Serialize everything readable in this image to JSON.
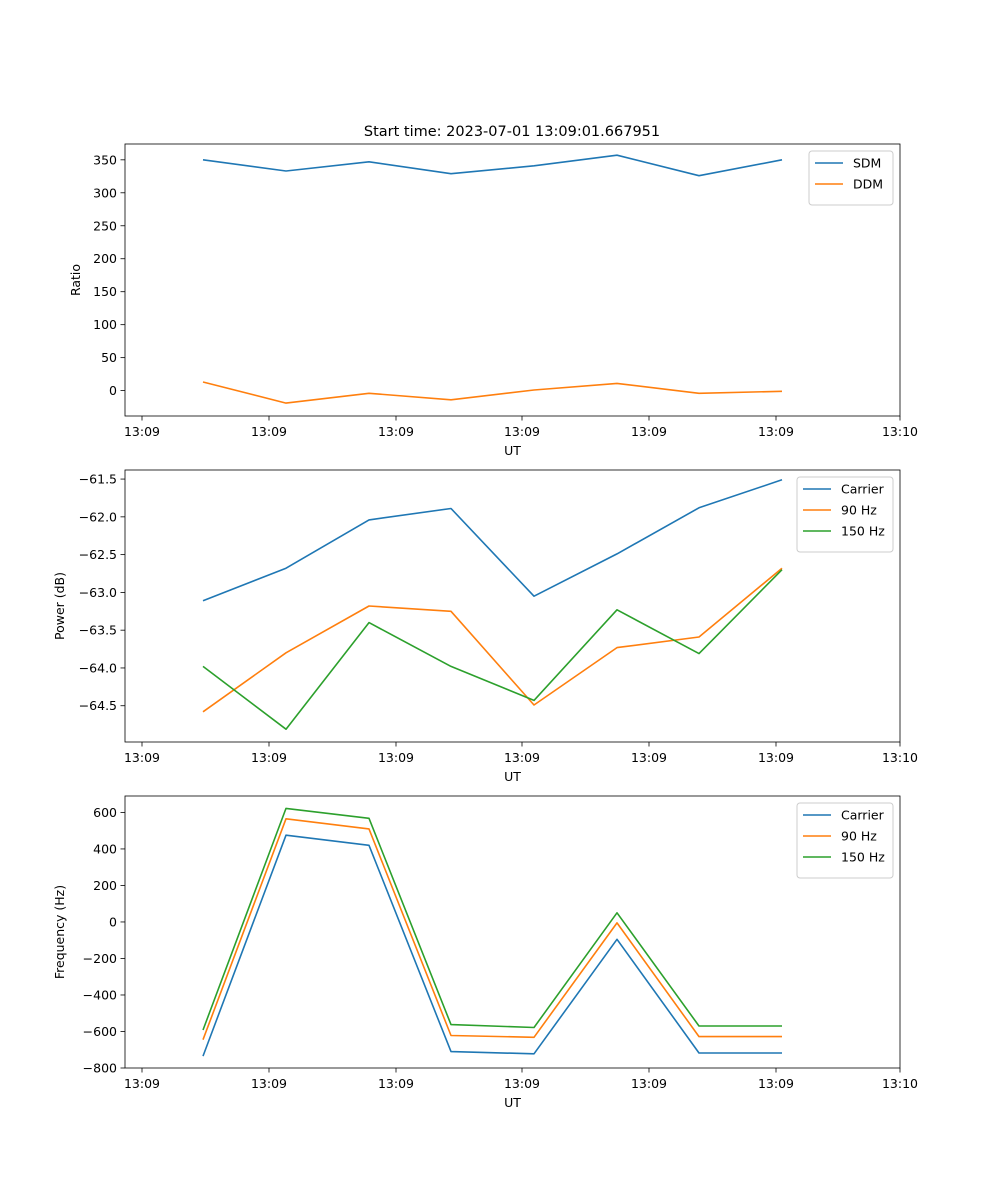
{
  "figure_title": "Start time: 2023-07-01 13:09:01.667951",
  "colors": {
    "blue": "#1f77b4",
    "orange": "#ff7f0e",
    "green": "#2ca02c"
  },
  "chart_data": [
    {
      "type": "line",
      "title": "Start time: 2023-07-01 13:09:01.667951",
      "xlabel": "UT",
      "ylabel": "Ratio",
      "x_tick_labels": [
        "13:09",
        "13:09",
        "13:09",
        "13:09",
        "13:09",
        "13:09",
        "13:10"
      ],
      "y_ticks": [
        0,
        50,
        100,
        150,
        200,
        250,
        300,
        350
      ],
      "y_tick_labels": [
        "0",
        "50",
        "100",
        "150",
        "200",
        "250",
        "300",
        "350"
      ],
      "ylim": [
        -38.5,
        374
      ],
      "legend_position": "upper right",
      "series": [
        {
          "name": "SDM",
          "color": "#1f77b4",
          "values": [
            350,
            333,
            347,
            329,
            341,
            357,
            326,
            350
          ]
        },
        {
          "name": "DDM",
          "color": "#ff7f0e",
          "values": [
            13,
            -19,
            -4,
            -14,
            1,
            11,
            -4,
            -1
          ]
        }
      ]
    },
    {
      "type": "line",
      "title": "",
      "xlabel": "UT",
      "ylabel": "Power (dB)",
      "x_tick_labels": [
        "13:09",
        "13:09",
        "13:09",
        "13:09",
        "13:09",
        "13:09",
        "13:10"
      ],
      "y_ticks": [
        -64.5,
        -64.0,
        -63.5,
        -63.0,
        -62.5,
        -62.0,
        -61.5
      ],
      "y_tick_labels": [
        "−64.5",
        "−64.0",
        "−63.5",
        "−63.0",
        "−62.5",
        "−62.0",
        "−61.5"
      ],
      "ylim": [
        -64.98,
        -61.38
      ],
      "legend_position": "upper right",
      "series": [
        {
          "name": "Carrier",
          "color": "#1f77b4",
          "values": [
            -63.11,
            -62.68,
            -62.04,
            -61.89,
            -63.05,
            -62.49,
            -61.88,
            -61.51
          ]
        },
        {
          "name": "90 Hz",
          "color": "#ff7f0e",
          "values": [
            -64.58,
            -63.8,
            -63.18,
            -63.25,
            -64.49,
            -63.73,
            -63.59,
            -62.68
          ]
        },
        {
          "name": "150 Hz",
          "color": "#2ca02c",
          "values": [
            -63.98,
            -64.81,
            -63.4,
            -63.98,
            -64.43,
            -63.23,
            -63.81,
            -62.7
          ]
        }
      ]
    },
    {
      "type": "line",
      "title": "",
      "xlabel": "UT",
      "ylabel": "Frequency (Hz)",
      "x_tick_labels": [
        "13:09",
        "13:09",
        "13:09",
        "13:09",
        "13:09",
        "13:09",
        "13:10"
      ],
      "y_ticks": [
        -800,
        -600,
        -400,
        -200,
        0,
        200,
        400,
        600
      ],
      "y_tick_labels": [
        "−800",
        "−600",
        "−400",
        "−200",
        "0",
        "200",
        "400",
        "600"
      ],
      "ylim": [
        -800,
        690
      ],
      "legend_position": "upper right",
      "series": [
        {
          "name": "Carrier",
          "color": "#1f77b4",
          "values": [
            -735,
            475,
            420,
            -710,
            -722,
            -95,
            -718,
            -718
          ]
        },
        {
          "name": "90 Hz",
          "color": "#ff7f0e",
          "values": [
            -645,
            565,
            510,
            -622,
            -632,
            -5,
            -628,
            -628
          ]
        },
        {
          "name": "150 Hz",
          "color": "#2ca02c",
          "values": [
            -592,
            622,
            568,
            -562,
            -578,
            50,
            -570,
            -570
          ]
        }
      ]
    }
  ]
}
